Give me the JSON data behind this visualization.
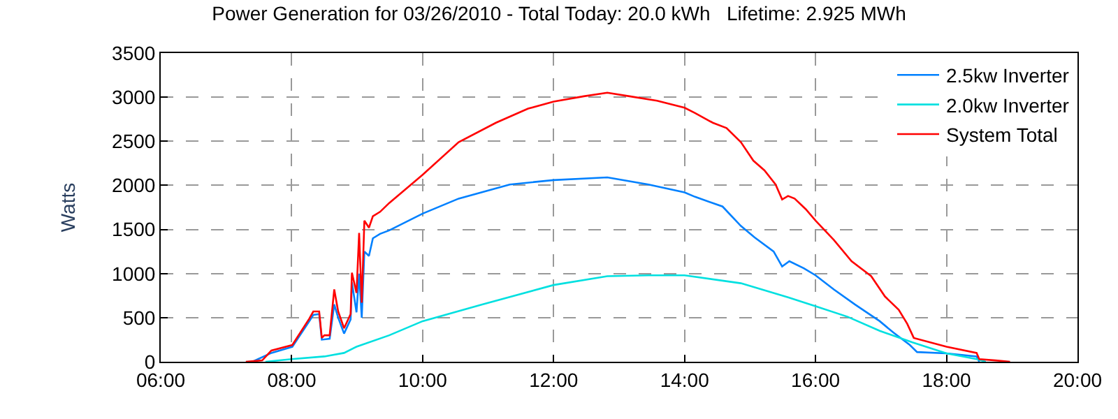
{
  "chart_data": {
    "type": "line",
    "title": "Power Generation for 03/26/2010 - Total Today: 20.0 kWh   Lifetime: 2.925 MWh",
    "ylabel": "Watts",
    "xlim": [
      6,
      20
    ],
    "xticks": [
      {
        "value": 6,
        "label": "06:00"
      },
      {
        "value": 8,
        "label": "08:00"
      },
      {
        "value": 10,
        "label": "10:00"
      },
      {
        "value": 12,
        "label": "12:00"
      },
      {
        "value": 14,
        "label": "14:00"
      },
      {
        "value": 16,
        "label": "16:00"
      },
      {
        "value": 18,
        "label": "18:00"
      },
      {
        "value": 20,
        "label": "20:00"
      }
    ],
    "ylim": [
      0,
      3500
    ],
    "yticks": [
      0,
      500,
      1000,
      1500,
      2000,
      2500,
      3000,
      3500
    ],
    "grid": true,
    "legend": "top right",
    "series": [
      {
        "name": "2.5kw Inverter",
        "color": "#0080ff",
        "x": [
          7.4,
          7.69,
          8.01,
          8.27,
          8.33,
          8.42,
          8.46,
          8.58,
          8.65,
          8.71,
          8.8,
          8.9,
          8.92,
          8.99,
          9.03,
          9.07,
          9.11,
          9.18,
          9.24,
          9.35,
          9.49,
          10.0,
          10.55,
          11.33,
          12.0,
          12.82,
          13.45,
          14.0,
          14.16,
          14.58,
          14.86,
          15.07,
          15.36,
          15.49,
          15.6,
          15.82,
          16.0,
          16.28,
          16.6,
          16.98,
          17.19,
          17.44,
          17.55,
          18.0,
          18.46,
          18.5
        ],
        "values": [
          0,
          100,
          170,
          460,
          530,
          540,
          250,
          260,
          650,
          500,
          320,
          480,
          900,
          560,
          1000,
          500,
          1250,
          1200,
          1400,
          1450,
          1490,
          1680,
          1850,
          2010,
          2060,
          2090,
          2010,
          1920,
          1870,
          1760,
          1540,
          1410,
          1250,
          1080,
          1140,
          1060,
          980,
          820,
          650,
          460,
          330,
          190,
          110,
          95,
          60,
          0
        ]
      },
      {
        "name": "2.0kw Inverter",
        "color": "#00e0e0",
        "x": [
          7.6,
          8.0,
          8.5,
          8.8,
          8.99,
          9.49,
          10.0,
          10.91,
          12.0,
          12.82,
          13.45,
          14.0,
          14.86,
          15.58,
          16.0,
          16.49,
          16.98,
          17.48,
          18.0,
          18.46,
          18.6
        ],
        "values": [
          0,
          30,
          60,
          100,
          170,
          300,
          460,
          650,
          870,
          970,
          980,
          980,
          890,
          730,
          630,
          510,
          350,
          220,
          95,
          30,
          0
        ]
      },
      {
        "name": "System Total",
        "color": "#ff0000",
        "x": [
          7.3,
          7.55,
          7.69,
          8.01,
          8.27,
          8.33,
          8.42,
          8.46,
          8.5,
          8.58,
          8.65,
          8.71,
          8.8,
          8.9,
          8.92,
          8.99,
          9.03,
          9.07,
          9.11,
          9.18,
          9.24,
          9.35,
          9.49,
          10.0,
          10.55,
          11.12,
          11.61,
          12.0,
          12.46,
          12.82,
          13.16,
          13.58,
          14.0,
          14.16,
          14.43,
          14.64,
          14.86,
          15.05,
          15.22,
          15.39,
          15.49,
          15.58,
          15.68,
          15.85,
          16.0,
          16.28,
          16.55,
          16.85,
          17.06,
          17.27,
          17.4,
          17.5,
          18.0,
          18.46,
          18.5,
          18.75,
          18.97
        ],
        "values": [
          0,
          15,
          127,
          190,
          490,
          570,
          570,
          270,
          300,
          300,
          820,
          570,
          380,
          540,
          1010,
          780,
          1460,
          670,
          1600,
          1520,
          1650,
          1700,
          1800,
          2120,
          2490,
          2710,
          2870,
          2950,
          3010,
          3050,
          3010,
          2960,
          2880,
          2820,
          2710,
          2650,
          2490,
          2280,
          2170,
          2010,
          1840,
          1880,
          1850,
          1730,
          1600,
          1380,
          1140,
          970,
          740,
          590,
          430,
          270,
          170,
          100,
          30,
          15,
          0
        ]
      }
    ]
  }
}
